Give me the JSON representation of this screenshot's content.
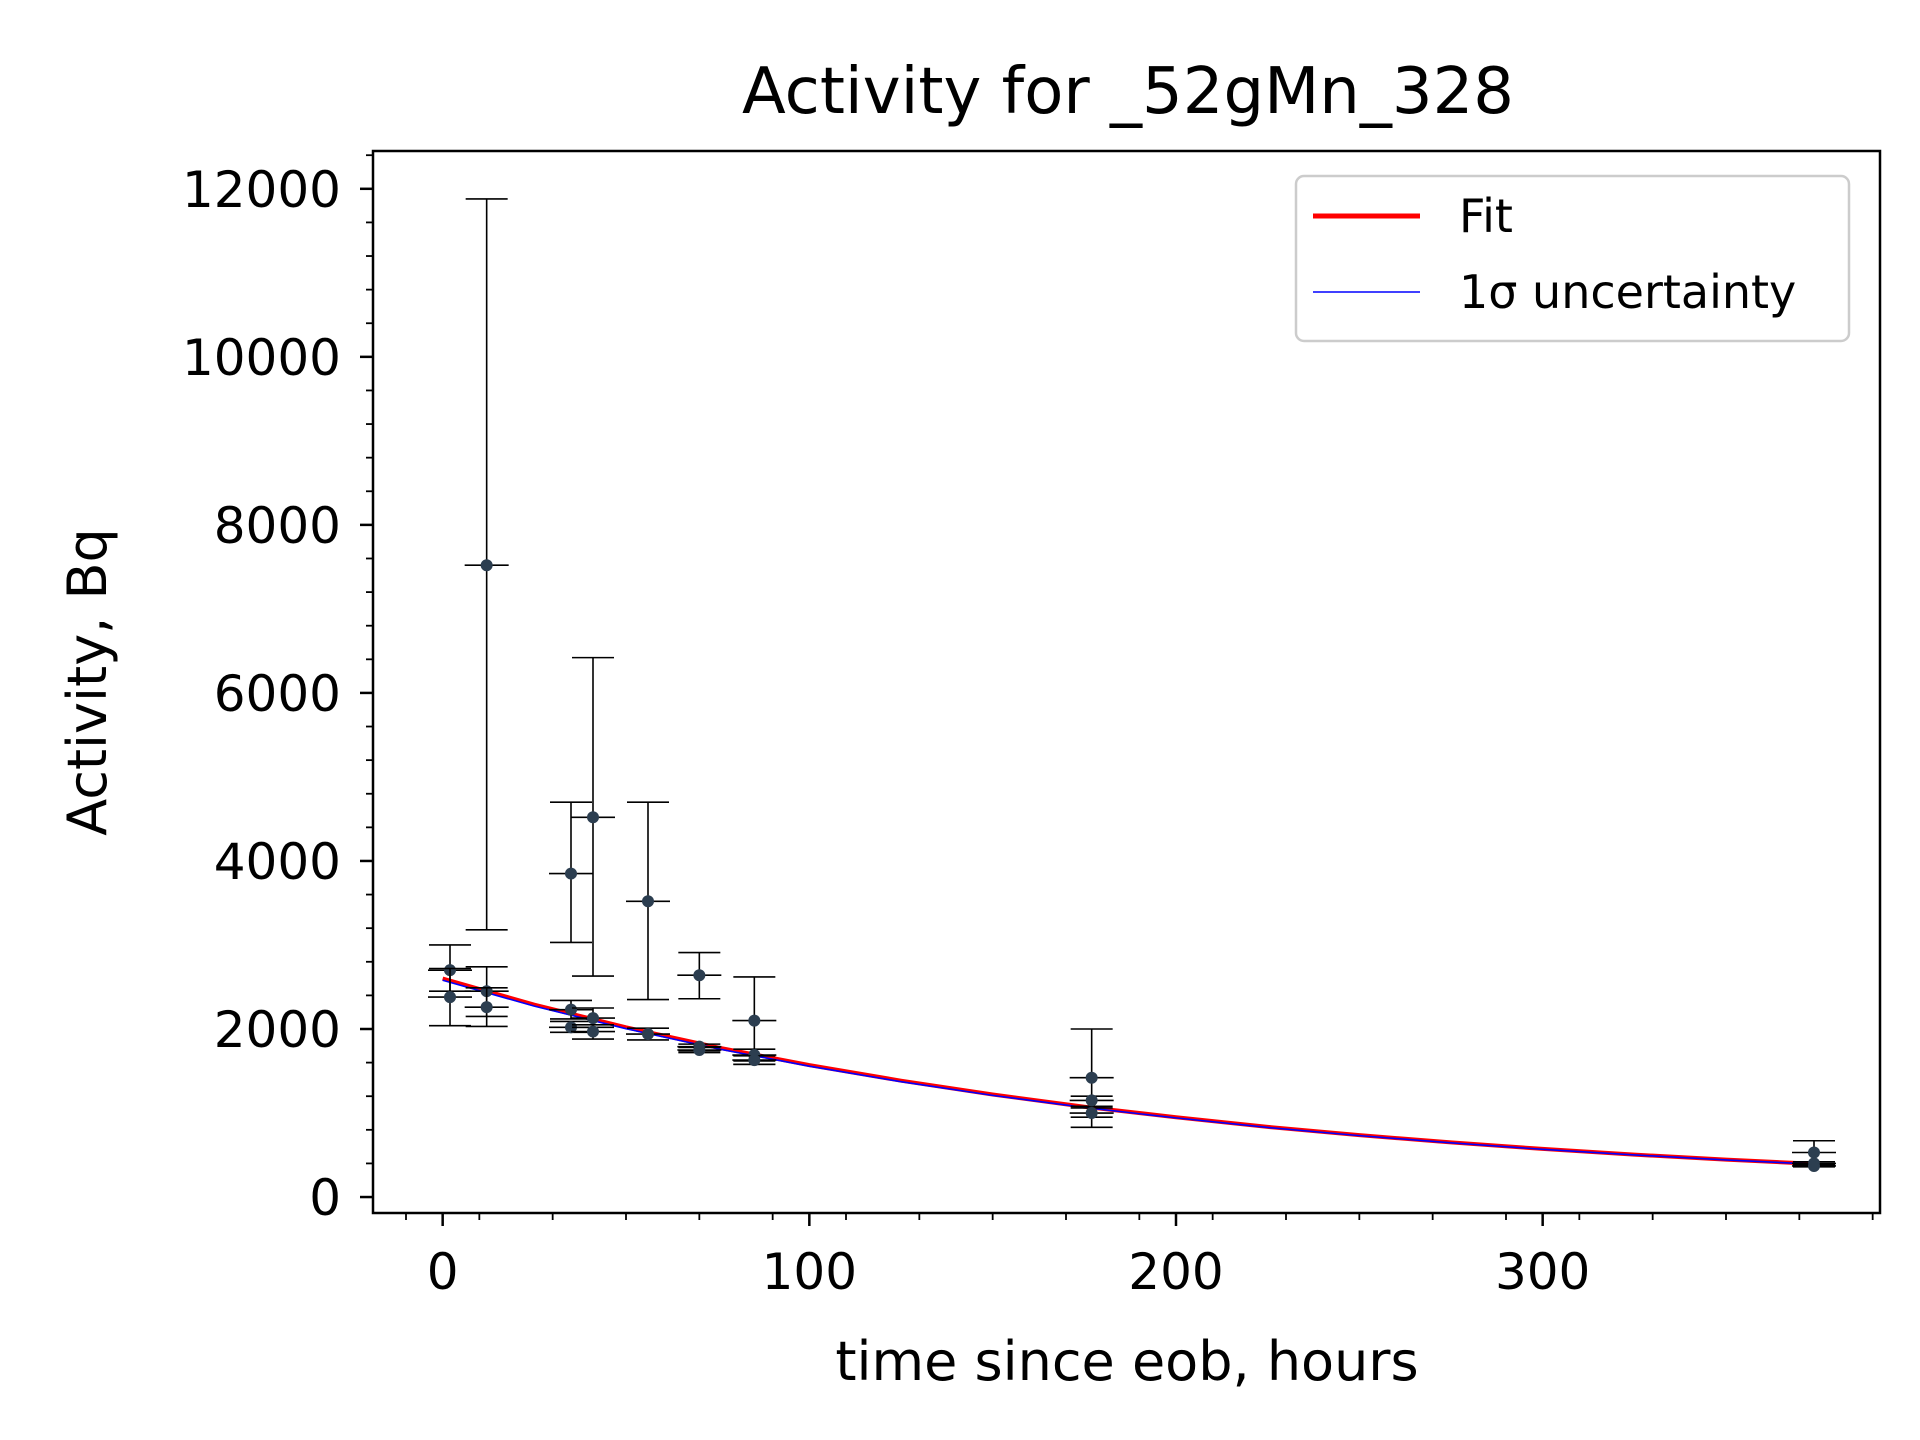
{
  "chart_data": {
    "type": "scatter",
    "title": "Activity for _52gMn_328",
    "xlabel": "time since eob, hours",
    "ylabel": "Activity, Bq",
    "xlim": [
      -19,
      392
    ],
    "ylim": [
      -190,
      12450
    ],
    "x_ticks": [
      0,
      100,
      200,
      300
    ],
    "x_tick_labels": [
      "0",
      "100",
      "200",
      "300"
    ],
    "y_ticks": [
      0,
      2000,
      4000,
      6000,
      8000,
      10000,
      12000
    ],
    "y_tick_labels": [
      "0",
      "2000",
      "4000",
      "6000",
      "8000",
      "10000",
      "12000"
    ],
    "grid": false,
    "legend_position": "top-right",
    "colors": {
      "fit": "#ff0000",
      "uncertainty": "#0000ff",
      "points": "#2c3e50",
      "errorbars": "#000000"
    },
    "fit": {
      "name": "Fit",
      "x": [
        0,
        25,
        50,
        75,
        100,
        125,
        150,
        175,
        200,
        225,
        250,
        275,
        300,
        325,
        350,
        375
      ],
      "y": [
        2600,
        2290,
        2020,
        1780,
        1570,
        1385,
        1220,
        1075,
        950,
        835,
        737,
        650,
        573,
        505,
        445,
        393
      ]
    },
    "uncertainty": {
      "name": "1σ uncertainty",
      "x": [
        0,
        25,
        50,
        75,
        100,
        125,
        150,
        175,
        200,
        225,
        250,
        275,
        300,
        325,
        350,
        375
      ],
      "y": [
        2580,
        2272,
        2004,
        1765,
        1557,
        1373,
        1210,
        1066,
        942,
        828,
        731,
        645,
        568,
        501,
        441,
        390
      ]
    },
    "data_points": [
      {
        "x": 2,
        "y": 2700,
        "yerr_low": 2450,
        "yerr_high": 3000,
        "xerr": 6
      },
      {
        "x": 2,
        "y": 2380,
        "yerr_low": 2040,
        "yerr_high": 2720,
        "xerr": 6
      },
      {
        "x": 12,
        "y": 7520,
        "yerr_low": 3180,
        "yerr_high": 11880,
        "xerr": 6
      },
      {
        "x": 12,
        "y": 2450,
        "yerr_low": 2150,
        "yerr_high": 2740,
        "xerr": 6
      },
      {
        "x": 12,
        "y": 2260,
        "yerr_low": 2030,
        "yerr_high": 2490,
        "xerr": 6
      },
      {
        "x": 35,
        "y": 3850,
        "yerr_low": 3030,
        "yerr_high": 4700,
        "xerr": 6
      },
      {
        "x": 35,
        "y": 2230,
        "yerr_low": 2120,
        "yerr_high": 2340,
        "xerr": 6
      },
      {
        "x": 35,
        "y": 2020,
        "yerr_low": 1960,
        "yerr_high": 2090,
        "xerr": 6
      },
      {
        "x": 41,
        "y": 4520,
        "yerr_low": 2630,
        "yerr_high": 6420,
        "xerr": 6
      },
      {
        "x": 41,
        "y": 2130,
        "yerr_low": 2020,
        "yerr_high": 2250,
        "xerr": 6
      },
      {
        "x": 41,
        "y": 1970,
        "yerr_low": 1880,
        "yerr_high": 2050,
        "xerr": 6
      },
      {
        "x": 56,
        "y": 3520,
        "yerr_low": 2350,
        "yerr_high": 4700,
        "xerr": 6
      },
      {
        "x": 56,
        "y": 1940,
        "yerr_low": 1870,
        "yerr_high": 2010,
        "xerr": 6
      },
      {
        "x": 70,
        "y": 2640,
        "yerr_low": 2360,
        "yerr_high": 2910,
        "xerr": 6
      },
      {
        "x": 70,
        "y": 1790,
        "yerr_low": 1740,
        "yerr_high": 1820,
        "xerr": 6
      },
      {
        "x": 70,
        "y": 1750,
        "yerr_low": 1720,
        "yerr_high": 1780,
        "xerr": 6
      },
      {
        "x": 85,
        "y": 2100,
        "yerr_low": 1580,
        "yerr_high": 2620,
        "xerr": 6
      },
      {
        "x": 85,
        "y": 1690,
        "yerr_low": 1620,
        "yerr_high": 1760,
        "xerr": 6
      },
      {
        "x": 85,
        "y": 1630,
        "yerr_low": 1580,
        "yerr_high": 1680,
        "xerr": 6
      },
      {
        "x": 177,
        "y": 1420,
        "yerr_low": 830,
        "yerr_high": 2000,
        "xerr": 6
      },
      {
        "x": 177,
        "y": 1150,
        "yerr_low": 1080,
        "yerr_high": 1200,
        "xerr": 6
      },
      {
        "x": 177,
        "y": 1000,
        "yerr_low": 950,
        "yerr_high": 1060,
        "xerr": 6
      },
      {
        "x": 374,
        "y": 530,
        "yerr_low": 390,
        "yerr_high": 670,
        "xerr": 6
      },
      {
        "x": 374,
        "y": 400,
        "yerr_low": 380,
        "yerr_high": 420,
        "xerr": 6
      },
      {
        "x": 374,
        "y": 370,
        "yerr_low": 360,
        "yerr_high": 390,
        "xerr": 6
      }
    ],
    "legend": [
      {
        "label": "Fit",
        "color": "#ff0000"
      },
      {
        "label": "1σ uncertainty",
        "color": "#0000ff"
      }
    ]
  }
}
